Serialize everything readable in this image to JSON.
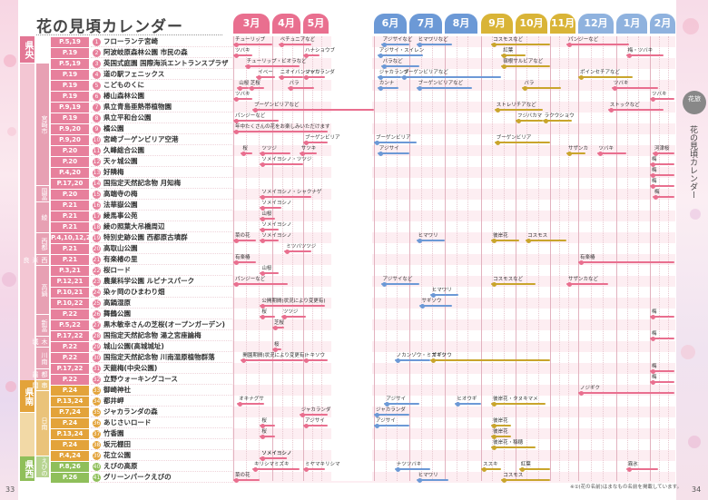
{
  "title": "花の見頃カレンダー",
  "side": {
    "circle": "花旅",
    "text": "花の見頃カレンダー"
  },
  "page_left": "33",
  "page_right": "34",
  "footnote": "※①(花の名前)はまなもの名前を掲載しています。",
  "months": [
    "3月",
    "4月",
    "5月",
    "6月",
    "7月",
    "8月",
    "9月",
    "10月",
    "11月",
    "12月",
    "1月",
    "2月"
  ],
  "month_colors": [
    "#e96f8f",
    "#e96f8f",
    "#e96f8f",
    "#6c99d6",
    "#6c99d6",
    "#6c99d6",
    "#d9b437",
    "#d9b437",
    "#d9b437",
    "#8fb2de",
    "#8fb2de",
    "#8fb2de"
  ],
  "regions": [
    {
      "label": "県央",
      "color": "#e37795"
    },
    {
      "label": "宮崎市",
      "color": "#e7a0b3"
    },
    {
      "label": "国富",
      "color": "#e7a0b3"
    },
    {
      "label": "綾",
      "color": "#e7a0b3"
    },
    {
      "label": "西都",
      "color": "#e7a0b3"
    },
    {
      "label": "西米良",
      "color": "#e7a0b3"
    },
    {
      "label": "高鍋",
      "color": "#e7a0b3"
    },
    {
      "label": "新富",
      "color": "#e7a0b3"
    },
    {
      "label": "木城",
      "color": "#e7a0b3"
    },
    {
      "label": "川南",
      "color": "#e7a0b3"
    },
    {
      "label": "都農",
      "color": "#e7a0b3"
    },
    {
      "label": "県南",
      "color": "#e3a33a"
    },
    {
      "label": "串間",
      "color": "#eac37a"
    },
    {
      "label": "日南",
      "color": "#eac37a"
    },
    {
      "label": "県西",
      "color": "#8fbf5a"
    },
    {
      "label": "えびの",
      "color": "#b6d38f"
    }
  ],
  "rows": [
    {
      "page": "P.5,19",
      "num": "1",
      "name": "フローランテ宮崎",
      "events": [
        {
          "label": "チューリップ"
        },
        {
          "label": "ベチュニアなど"
        },
        {
          "label": "アジサイなど"
        },
        {
          "label": "ヒマワリなど"
        },
        {
          "label": "コスモスなど"
        },
        {
          "label": "パンジーなど"
        }
      ]
    },
    {
      "page": "P.19",
      "num": "2",
      "name": "阿波岐原森林公園 市民の森",
      "events": [
        {
          "label": "ツバキ"
        },
        {
          "label": "ハナショウブ"
        },
        {
          "label": "アジサイ・スイレン"
        },
        {
          "label": "紅葉"
        },
        {
          "label": "梅・ツバキ"
        }
      ]
    },
    {
      "page": "P.5,19",
      "num": "3",
      "name": "英国式庭園 国際海浜エントランスプラザ",
      "events": [
        {
          "label": "チューリップ・ビオラなど"
        },
        {
          "label": "バラなど"
        },
        {
          "label": "宿根サルビアなど"
        }
      ]
    },
    {
      "page": "P.19",
      "num": "4",
      "name": "道の駅フェニックス",
      "events": [
        {
          "label": "イベー"
        },
        {
          "label": "ニオイバンマツリ"
        },
        {
          "label": "ジャカランダ"
        },
        {
          "label": "ジャカランダ"
        },
        {
          "label": "ブーゲンビリアなど"
        },
        {
          "label": "ポインセチアなど"
        }
      ]
    },
    {
      "page": "P.19",
      "num": "5",
      "name": "こどものくに",
      "events": [
        {
          "label": "山桜"
        },
        {
          "label": "芝桜"
        },
        {
          "label": "バラ"
        },
        {
          "label": "カンナ"
        },
        {
          "label": "ブーゲンビリアなど"
        },
        {
          "label": "バラ"
        },
        {
          "label": "ツバキ"
        }
      ]
    },
    {
      "page": "P.19",
      "num": "6",
      "name": "椿山森林公園",
      "events": [
        {
          "label": "ツバキ"
        },
        {
          "label": "ツバキ"
        }
      ]
    },
    {
      "page": "P.9,19",
      "num": "7",
      "name": "県立青島亜熱帯植物園",
      "events": [
        {
          "label": "ブーゲンビリアなど"
        },
        {
          "label": "ストレリチアなど"
        },
        {
          "label": "ストックなど"
        }
      ]
    },
    {
      "page": "P.19",
      "num": "8",
      "name": "県立平和台公園",
      "events": [
        {
          "label": "パンジーなど"
        },
        {
          "label": "フジバカマ"
        },
        {
          "label": "ラクウショウ"
        }
      ]
    },
    {
      "page": "P.9,20",
      "num": "9",
      "name": "橘公園",
      "events": [
        {
          "label": "年中たくさんの花をお楽しみいただけます"
        }
      ]
    },
    {
      "page": "P.9,20",
      "num": "10",
      "name": "宮崎ブーゲンビリア空港",
      "events": [
        {
          "label": "ブーゲンビリア"
        },
        {
          "label": "ブーゲンビリア"
        },
        {
          "label": "ブーゲンビリア"
        }
      ]
    },
    {
      "page": "P.20",
      "num": "11",
      "name": "久峰総合公園",
      "events": [
        {
          "label": "桜"
        },
        {
          "label": "ツツジ"
        },
        {
          "label": "サツキ"
        },
        {
          "label": "アジサイ"
        },
        {
          "label": "サザンカ"
        },
        {
          "label": "ツバキ"
        },
        {
          "label": "河津桜"
        }
      ]
    },
    {
      "page": "P.20",
      "num": "12",
      "name": "天ヶ城公園",
      "events": [
        {
          "label": "ソメイヨシノ・ツツジ"
        },
        {
          "label": "梅"
        }
      ]
    },
    {
      "page": "P.4,20",
      "num": "13",
      "name": "好隣梅",
      "events": [
        {
          "label": "梅"
        }
      ]
    },
    {
      "page": "P.17,20",
      "num": "14",
      "name": "国指定天然記念物 月知梅",
      "events": [
        {
          "label": "梅"
        }
      ]
    },
    {
      "page": "P.20",
      "num": "15",
      "name": "高端寺の梅",
      "events": [
        {
          "label": "ソメイヨシノ・シャクナゲ"
        },
        {
          "label": "梅"
        }
      ]
    },
    {
      "page": "P.21",
      "num": "16",
      "name": "法華嶽公園",
      "events": [
        {
          "label": "ソメイヨシノ"
        }
      ]
    },
    {
      "page": "P.21",
      "num": "17",
      "name": "綾馬事公苑",
      "events": [
        {
          "label": "山桜"
        }
      ]
    },
    {
      "page": "P.21",
      "num": "18",
      "name": "綾の照葉大吊橋周辺",
      "events": [
        {
          "label": "ソメイヨシノ"
        }
      ]
    },
    {
      "page": "P.4,10,12,21",
      "num": "19",
      "name": "特別史跡公園 西都原古墳群",
      "events": [
        {
          "label": "菜の花"
        },
        {
          "label": "ソメイヨシノ"
        },
        {
          "label": "ヒマワリ"
        },
        {
          "label": "彼岸花"
        },
        {
          "label": "コスモス"
        }
      ]
    },
    {
      "page": "P.21",
      "num": "20",
      "name": "高取山公園",
      "events": [
        {
          "label": "ミツバツツジ"
        }
      ]
    },
    {
      "page": "P.21",
      "num": "21",
      "name": "有楽椿の里",
      "events": [
        {
          "label": "有楽椿"
        },
        {
          "label": "有楽椿"
        }
      ]
    },
    {
      "page": "P.3,21",
      "num": "22",
      "name": "桜ロード",
      "events": [
        {
          "label": "山桜"
        }
      ]
    },
    {
      "page": "P.12,21",
      "num": "23",
      "name": "農業科学公園 ルピナスパーク",
      "events": [
        {
          "label": "パンジーなど"
        },
        {
          "label": "アジサイなど"
        },
        {
          "label": "コスモスなど"
        },
        {
          "label": "サザンカなど"
        }
      ]
    },
    {
      "page": "P.10,21",
      "num": "24",
      "name": "染ヶ岡のひまわり畑",
      "events": [
        {
          "label": "ヒマワリ"
        }
      ]
    },
    {
      "page": "P.10,22",
      "num": "25",
      "name": "高鍋湿原",
      "events": [
        {
          "label": "公開期間(状況により変更有)"
        },
        {
          "label": "サギソウ"
        }
      ]
    },
    {
      "page": "P.22",
      "num": "26",
      "name": "舞鶴公園",
      "events": [
        {
          "label": "桜"
        },
        {
          "label": "ツツジ"
        },
        {
          "label": "梅"
        }
      ]
    },
    {
      "page": "P.5,22",
      "num": "27",
      "name": "黒木敏幸さんの芝桜(オープンガーデン)",
      "events": [
        {
          "label": "芝桜"
        }
      ]
    },
    {
      "page": "P.17,22",
      "num": "28",
      "name": "国指定天然記念物 湯之宮座論梅",
      "events": [
        {
          "label": "梅"
        }
      ]
    },
    {
      "page": "P.22",
      "num": "29",
      "name": "城山公園(高城城址)",
      "events": [
        {
          "label": "桜"
        }
      ]
    },
    {
      "page": "P.22",
      "num": "30",
      "name": "国指定天然記念物 川南湿原植物群落",
      "events": [
        {
          "label": "開園期間(状況により変更有)"
        },
        {
          "label": "トキソウ"
        },
        {
          "label": "ノカンゾウ・ミズギク"
        },
        {
          "label": "サギソウ"
        }
      ]
    },
    {
      "page": "P.17,22",
      "num": "31",
      "name": "天龍梅(中央公園)",
      "events": [
        {
          "label": "梅"
        }
      ]
    },
    {
      "page": "P.22",
      "num": "32",
      "name": "立野ウォーキングコース",
      "events": [
        {
          "label": "梅"
        }
      ]
    },
    {
      "page": "P.24",
      "num": "33",
      "name": "御崎神社",
      "events": [
        {
          "label": "ノジギク"
        }
      ]
    },
    {
      "page": "P.13,24",
      "num": "34",
      "name": "都井岬",
      "events": [
        {
          "label": "オキナグサ"
        },
        {
          "label": "アジサイ"
        },
        {
          "label": "ヒオウギ"
        },
        {
          "label": "彼岸花・タヌキマメ"
        }
      ]
    },
    {
      "page": "P.7,24",
      "num": "35",
      "name": "ジャカランダの森",
      "events": [
        {
          "label": "ジャカランダ"
        },
        {
          "label": "ジャカランダ"
        }
      ]
    },
    {
      "page": "P.24",
      "num": "36",
      "name": "あじさいロード",
      "events": [
        {
          "label": "桜"
        },
        {
          "label": "アジサイ"
        },
        {
          "label": "アジサイ"
        },
        {
          "label": "彼岸花"
        }
      ]
    },
    {
      "page": "P.13,24",
      "num": "37",
      "name": "竹香園",
      "events": [
        {
          "label": "桜"
        },
        {
          "label": "彼岸花"
        }
      ]
    },
    {
      "page": "P.24",
      "num": "38",
      "name": "坂元棚田",
      "events": [
        {
          "label": "彼岸花・稲穂"
        }
      ]
    },
    {
      "page": "P.4,24",
      "num": "39",
      "name": "花立公園",
      "events": [
        {
          "label": "ソメイヨシノ"
        },
        {
          "label": "ソメイヨシノ"
        }
      ]
    },
    {
      "page": "P.8,26",
      "num": "40",
      "name": "えびの高原",
      "events": [
        {
          "label": "キリシマミズキ"
        },
        {
          "label": "ミヤマキリシマ"
        },
        {
          "label": "ナツツバキ"
        },
        {
          "label": "ススキ"
        },
        {
          "label": "紅葉"
        },
        {
          "label": "霧氷"
        }
      ]
    },
    {
      "page": "P.26",
      "num": "41",
      "name": "グリーンパークえびの",
      "events": [
        {
          "label": "菜の花"
        },
        {
          "label": "ヒマワリ"
        },
        {
          "label": "コスモス"
        }
      ]
    }
  ]
}
